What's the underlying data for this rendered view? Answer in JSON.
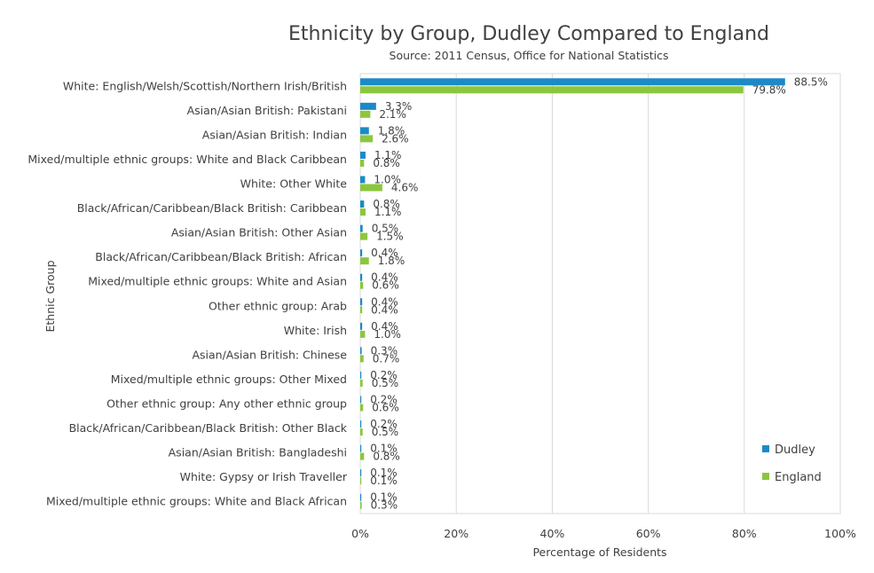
{
  "chart_data": {
    "type": "bar",
    "orientation": "horizontal",
    "title": "Ethnicity by Group, Dudley Compared to England",
    "subtitle": "Source: 2011 Census, Office for National Statistics",
    "xlabel": "Percentage of Residents",
    "ylabel": "Ethnic Group",
    "xlim": [
      0,
      100
    ],
    "xticks": [
      "0%",
      "20%",
      "40%",
      "60%",
      "80%",
      "100%"
    ],
    "xtick_values": [
      0,
      20,
      40,
      60,
      80,
      100
    ],
    "grid": true,
    "legend": "right",
    "categories": [
      "White: English/Welsh/Scottish/Northern Irish/British",
      "Asian/Asian British: Pakistani",
      "Asian/Asian British: Indian",
      "Mixed/multiple ethnic groups: White and Black Caribbean",
      "White: Other White",
      "Black/African/Caribbean/Black British: Caribbean",
      "Asian/Asian British: Other Asian",
      "Black/African/Caribbean/Black British: African",
      "Mixed/multiple ethnic groups: White and Asian",
      "Other ethnic group: Arab",
      "White: Irish",
      "Asian/Asian British: Chinese",
      "Mixed/multiple ethnic groups: Other Mixed",
      "Other ethnic group: Any other ethnic group",
      "Black/African/Caribbean/Black British: Other Black",
      "Asian/Asian British: Bangladeshi",
      "White: Gypsy or Irish Traveller",
      "Mixed/multiple ethnic groups: White and Black African"
    ],
    "series": [
      {
        "name": "Dudley",
        "color": "#1b8ac7",
        "values": [
          88.5,
          3.3,
          1.8,
          1.1,
          1.0,
          0.8,
          0.5,
          0.4,
          0.4,
          0.4,
          0.4,
          0.3,
          0.2,
          0.2,
          0.2,
          0.1,
          0.1,
          0.1
        ],
        "labels": [
          "88.5%",
          "3.3%",
          "1.8%",
          "1.1%",
          "1.0%",
          "0.8%",
          "0.5%",
          "0.4%",
          "0.4%",
          "0.4%",
          "0.4%",
          "0.3%",
          "0.2%",
          "0.2%",
          "0.2%",
          "0.1%",
          "0.1%",
          "0.1%"
        ]
      },
      {
        "name": "England",
        "color": "#8cc63e",
        "values": [
          79.8,
          2.1,
          2.6,
          0.8,
          4.6,
          1.1,
          1.5,
          1.8,
          0.6,
          0.4,
          1.0,
          0.7,
          0.5,
          0.6,
          0.5,
          0.8,
          0.1,
          0.3
        ],
        "labels": [
          "79.8%",
          "2.1%",
          "2.6%",
          "0.8%",
          "4.6%",
          "1.1%",
          "1.5%",
          "1.8%",
          "0.6%",
          "0.4%",
          "1.0%",
          "0.7%",
          "0.5%",
          "0.6%",
          "0.5%",
          "0.8%",
          "0.1%",
          "0.3%"
        ]
      }
    ]
  }
}
